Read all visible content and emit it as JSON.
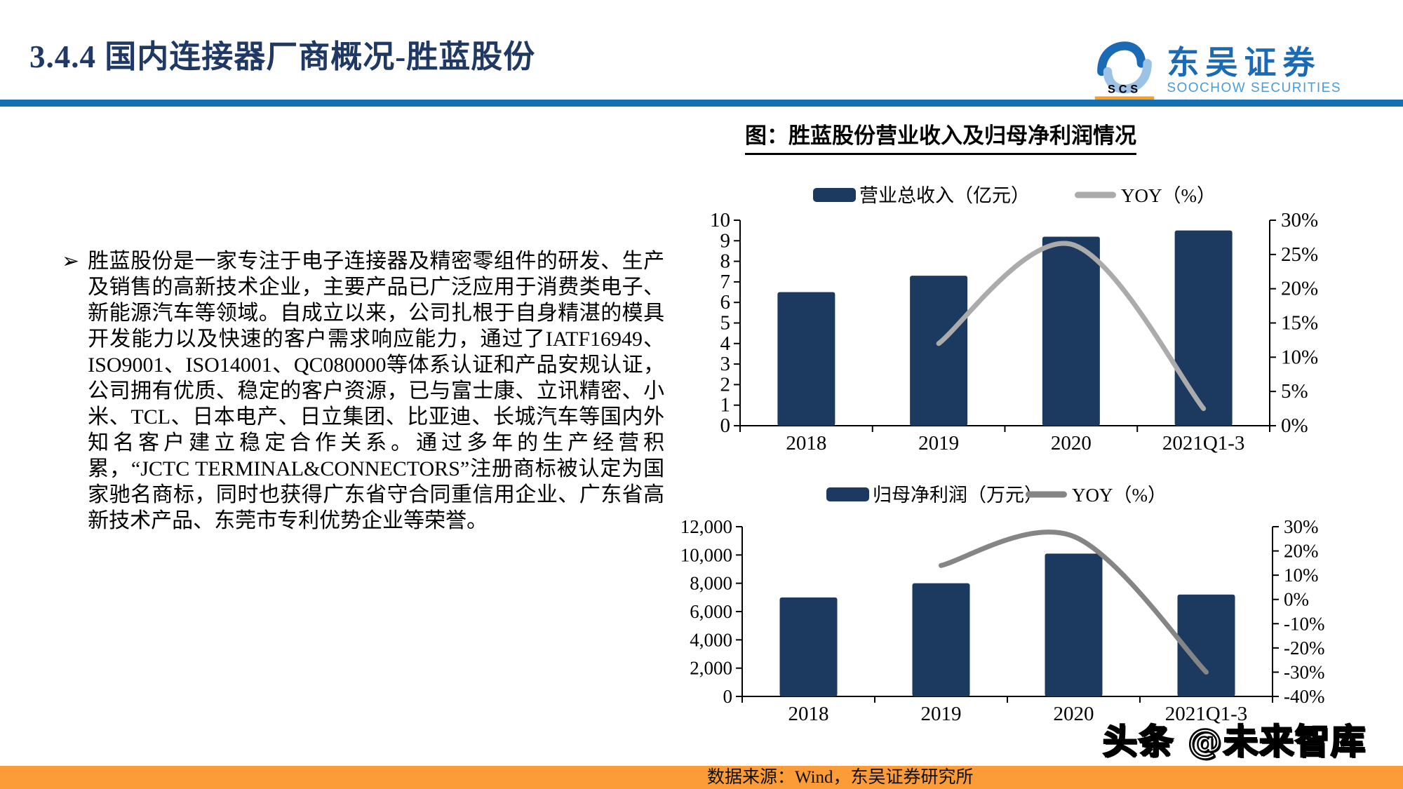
{
  "header": {
    "title": "3.4.4 国内连接器厂商概况-胜蓝股份"
  },
  "logo": {
    "cn": "东吴证券",
    "en": "SOOCHOW SECURITIES",
    "mark": "SCS"
  },
  "body_text": {
    "bullet": "➢",
    "paragraph": "胜蓝股份是一家专注于电子连接器及精密零组件的研发、生产及销售的高新技术企业，主要产品已广泛应用于消费类电子、新能源汽车等领域。自成立以来，公司扎根于自身精湛的模具开发能力以及快速的客户需求响应能力，通过了IATF16949、ISO9001、ISO14001、QC080000等体系认证和产品安规认证，公司拥有优质、稳定的客户资源，已与富士康、立讯精密、小米、TCL、日本电产、日立集团、比亚迪、长城汽车等国内外知名客户建立稳定合作关系。通过多年的生产经营积累，“JCTC TERMINAL&CONNECTORS”注册商标被认定为国家驰名商标，同时也获得广东省守合同重信用企业、广东省高新技术产品、东莞市专利优势企业等荣誉。"
  },
  "figure": {
    "title": "图：胜蓝股份营业收入及归母净利润情况"
  },
  "chart_data": [
    {
      "type": "bar",
      "subtype": "bar+line-dual-axis",
      "categories": [
        "2018",
        "2019",
        "2020",
        "2021Q1-3"
      ],
      "series": [
        {
          "name": "营业总收入（亿元）",
          "type": "bar",
          "axis": "left",
          "color": "#1c3a5f",
          "values": [
            6.5,
            7.3,
            9.2,
            9.5
          ]
        },
        {
          "name": "YOY（%）",
          "type": "line",
          "axis": "right",
          "color": "#ababab",
          "values": [
            null,
            12,
            26.5,
            2.5
          ]
        }
      ],
      "left_axis": {
        "min": 0,
        "max": 10,
        "step": 1,
        "format": "plain"
      },
      "right_axis": {
        "min": 0,
        "max": 30,
        "step": 5,
        "format": "percent"
      },
      "legend_position": "top",
      "grid": false
    },
    {
      "type": "bar",
      "subtype": "bar+line-dual-axis",
      "categories": [
        "2018",
        "2019",
        "2020",
        "2021Q1-3"
      ],
      "series": [
        {
          "name": "归母净利润（万元）",
          "type": "bar",
          "axis": "left",
          "color": "#1c3a5f",
          "values": [
            7000,
            8000,
            10100,
            7200
          ]
        },
        {
          "name": "YOY（%）",
          "type": "line",
          "axis": "right",
          "color": "#858585",
          "values": [
            null,
            14,
            26,
            -30
          ]
        }
      ],
      "left_axis": {
        "min": 0,
        "max": 12000,
        "step": 2000,
        "format": "thousands"
      },
      "right_axis": {
        "min": -40,
        "max": 30,
        "step": 10,
        "format": "percent"
      },
      "legend_position": "top",
      "grid": false
    }
  ],
  "footer": {
    "source": "数据来源：Wind，东吴证券研究所",
    "watermark": "头条 @未来智库"
  },
  "colors": {
    "title_navy": "#1f3864",
    "bar_navy": "#1c3a5f",
    "line_gray_top": "#ababab",
    "line_gray_bottom": "#858585",
    "divider_blue": "#1470b2",
    "footer_orange": "#fb9c38",
    "logo_blue": "#1a6ab5",
    "logo_light_blue": "#9cc2e5",
    "logo_orange": "#f5a126"
  }
}
